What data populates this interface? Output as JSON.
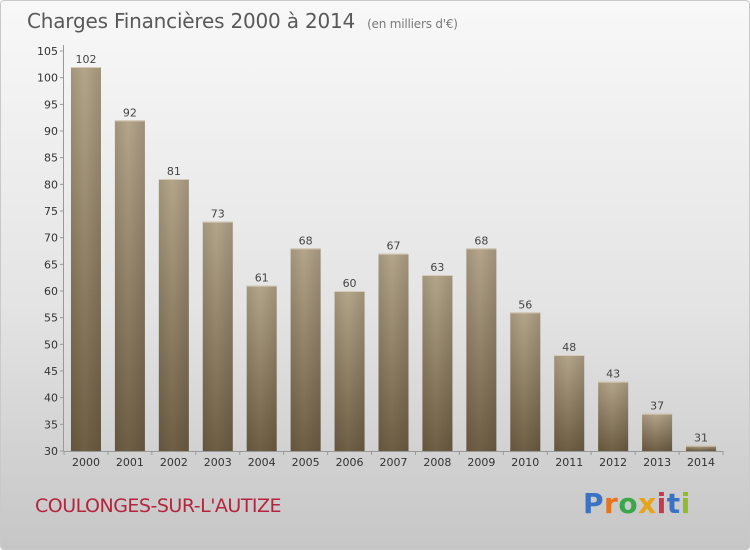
{
  "title": "Charges Financières 2000 à 2014",
  "subtitle": "(en milliers d'€)",
  "commune": "COULONGES-SUR-L'AUTIZE",
  "brand": {
    "text": "Proxiti",
    "letter_colors": [
      "#3a73c6",
      "#e8731c",
      "#3aa84a",
      "#e7a31a",
      "#c7374e",
      "#3a73c6",
      "#8fbc2a"
    ]
  },
  "colors": {
    "bar_top": "#b4a58a",
    "bar_bottom": "#6e5e44",
    "commune_text": "#b3253d"
  },
  "chart_data": {
    "type": "bar",
    "categories": [
      "2000",
      "2001",
      "2002",
      "2003",
      "2004",
      "2005",
      "2006",
      "2007",
      "2008",
      "2009",
      "2010",
      "2011",
      "2012",
      "2013",
      "2014"
    ],
    "values": [
      102,
      92,
      81,
      73,
      61,
      68,
      60,
      67,
      63,
      68,
      56,
      48,
      43,
      37,
      31
    ],
    "title": "Charges Financières 2000 à 2014",
    "subtitle": "(en milliers d'€)",
    "xlabel": "",
    "ylabel": "",
    "ylim": [
      30,
      105
    ],
    "yticks": [
      30,
      35,
      40,
      45,
      50,
      55,
      60,
      65,
      70,
      75,
      80,
      85,
      90,
      95,
      100,
      105
    ],
    "grid": false,
    "data_labels": true
  }
}
